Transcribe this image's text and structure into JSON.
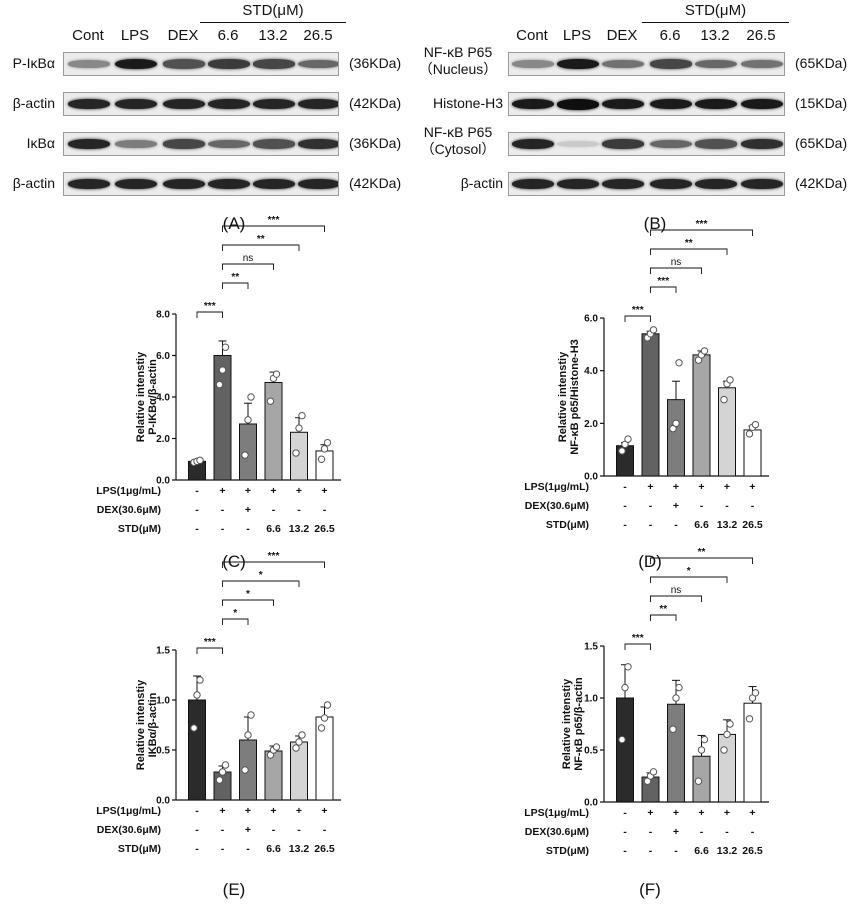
{
  "blots": [
    {
      "id": "A",
      "caption": "(A)",
      "header": {
        "labels": [
          "Cont",
          "LPS",
          "DEX"
        ],
        "std_label": "STD(μM)",
        "std_doses": [
          "6.6",
          "13.2",
          "26.5"
        ]
      },
      "rows": [
        {
          "name": "P-IκBα",
          "mw": "(36KDa)",
          "intensities": [
            0.45,
            0.95,
            0.7,
            0.8,
            0.75,
            0.6
          ]
        },
        {
          "name": "β-actin",
          "mw": "(42KDa)",
          "intensities": [
            0.9,
            0.9,
            0.9,
            0.9,
            0.9,
            0.9
          ]
        },
        {
          "name": "IκBα",
          "mw": "(36KDa)",
          "intensities": [
            0.9,
            0.5,
            0.75,
            0.6,
            0.7,
            0.85
          ]
        },
        {
          "name": "β-actin",
          "mw": "(42KDa)",
          "intensities": [
            0.9,
            0.9,
            0.9,
            0.9,
            0.9,
            0.9
          ]
        }
      ]
    },
    {
      "id": "B",
      "caption": "(B)",
      "header": {
        "labels": [
          "Cont",
          "LPS",
          "DEX"
        ],
        "std_label": "STD(μM)",
        "std_doses": [
          "6.6",
          "13.2",
          "26.5"
        ]
      },
      "rows": [
        {
          "name": "NF-κB P65",
          "name2": "（Nucleus）",
          "mw": "(65KDa)",
          "intensities": [
            0.45,
            0.95,
            0.55,
            0.75,
            0.6,
            0.55
          ]
        },
        {
          "name": "Histone-H3",
          "mw": "(15KDa)",
          "intensities": [
            0.95,
            1.0,
            0.95,
            0.95,
            0.95,
            0.95
          ]
        },
        {
          "name": "NF-κB P65",
          "name2": "（Cytosol）",
          "mw": "(65KDa)",
          "intensities": [
            0.9,
            0.15,
            0.8,
            0.6,
            0.7,
            0.85
          ]
        },
        {
          "name": "β-actin",
          "mw": "(42KDa)",
          "intensities": [
            0.9,
            0.9,
            0.9,
            0.9,
            0.9,
            0.9
          ]
        }
      ]
    }
  ],
  "chart_data": [
    {
      "id": "C",
      "type": "bar",
      "caption": "(C)",
      "ylabel": "Relative intenstiy",
      "ylabel2": "P-IKBα/β-actin",
      "ylim": [
        0,
        8
      ],
      "yticks": [
        "0.0",
        "2.0",
        "4.0",
        "6.0",
        "8.0"
      ],
      "values": [
        0.9,
        6.0,
        2.7,
        4.7,
        2.3,
        1.4
      ],
      "errors": [
        0.06,
        0.7,
        1.0,
        0.5,
        0.7,
        0.3
      ],
      "points": [
        [
          0.85,
          0.9,
          0.95
        ],
        [
          4.6,
          5.3,
          6.4
        ],
        [
          1.2,
          2.9,
          4.0
        ],
        [
          3.8,
          4.9,
          5.1
        ],
        [
          1.3,
          2.5,
          3.1
        ],
        [
          1.0,
          1.5,
          1.8
        ]
      ],
      "comparisons": [
        {
          "from": 0,
          "to": 1,
          "label": "***"
        },
        {
          "from": 1,
          "to": 2,
          "label": "**"
        },
        {
          "from": 1,
          "to": 3,
          "label": "ns"
        },
        {
          "from": 1,
          "to": 4,
          "label": "**"
        },
        {
          "from": 1,
          "to": 5,
          "label": "***"
        }
      ],
      "conditions": [
        {
          "label": "LPS(1μg/mL)",
          "values": [
            "-",
            "+",
            "+",
            "+",
            "+",
            "+"
          ]
        },
        {
          "label": "DEX(30.6μM)",
          "values": [
            "-",
            "-",
            "+",
            "-",
            "-",
            "-"
          ]
        },
        {
          "label": "STD(μM)",
          "values": [
            "-",
            "-",
            "-",
            "6.6",
            "13.2",
            "26.5"
          ]
        }
      ]
    },
    {
      "id": "D",
      "type": "bar",
      "caption": "(D)",
      "ylabel": "Relative intenstiy",
      "ylabel2": "NF-κB p65/Histone-H3",
      "ylim": [
        0,
        6
      ],
      "yticks": [
        "0.0",
        "2.0",
        "4.0",
        "6.0"
      ],
      "values": [
        1.15,
        5.4,
        2.9,
        4.6,
        3.35,
        1.75
      ],
      "errors": [
        0.12,
        0.1,
        0.7,
        0.15,
        0.25,
        0.15
      ],
      "points": [
        [
          0.95,
          1.2,
          1.4
        ],
        [
          5.25,
          5.4,
          5.55
        ],
        [
          1.8,
          2.0,
          4.3
        ],
        [
          4.4,
          4.6,
          4.75
        ],
        [
          2.9,
          3.5,
          3.65
        ],
        [
          1.6,
          1.85,
          1.95
        ]
      ],
      "comparisons": [
        {
          "from": 0,
          "to": 1,
          "label": "***"
        },
        {
          "from": 1,
          "to": 2,
          "label": "***"
        },
        {
          "from": 1,
          "to": 3,
          "label": "ns"
        },
        {
          "from": 1,
          "to": 4,
          "label": "**"
        },
        {
          "from": 1,
          "to": 5,
          "label": "***"
        }
      ],
      "conditions": [
        {
          "label": "LPS(1μg/mL)",
          "values": [
            "-",
            "+",
            "+",
            "+",
            "+",
            "+"
          ]
        },
        {
          "label": "DEX(30.6μM)",
          "values": [
            "-",
            "-",
            "+",
            "-",
            "-",
            "-"
          ]
        },
        {
          "label": "STD(μM)",
          "values": [
            "-",
            "-",
            "-",
            "6.6",
            "13.2",
            "26.5"
          ]
        }
      ]
    },
    {
      "id": "E",
      "type": "bar",
      "caption": "(E)",
      "ylabel": "Relative intenstiy",
      "ylabel2": "IKBα/β-actin",
      "ylim": [
        0,
        1.5
      ],
      "yticks": [
        "0.0",
        "0.5",
        "1.0",
        "1.5"
      ],
      "values": [
        1.0,
        0.28,
        0.6,
        0.49,
        0.58,
        0.83
      ],
      "errors": [
        0.24,
        0.06,
        0.23,
        0.05,
        0.06,
        0.1
      ],
      "points": [
        [
          0.72,
          1.05,
          1.2
        ],
        [
          0.2,
          0.28,
          0.35
        ],
        [
          0.3,
          0.65,
          0.85
        ],
        [
          0.45,
          0.5,
          0.53
        ],
        [
          0.52,
          0.58,
          0.65
        ],
        [
          0.72,
          0.82,
          0.95
        ]
      ],
      "comparisons": [
        {
          "from": 0,
          "to": 1,
          "label": "***"
        },
        {
          "from": 1,
          "to": 2,
          "label": "*"
        },
        {
          "from": 1,
          "to": 3,
          "label": "*"
        },
        {
          "from": 1,
          "to": 4,
          "label": "*"
        },
        {
          "from": 1,
          "to": 5,
          "label": "***"
        }
      ],
      "conditions": [
        {
          "label": "LPS(1μg/mL)",
          "values": [
            "-",
            "+",
            "+",
            "+",
            "+",
            "+"
          ]
        },
        {
          "label": "DEX(30.6μM)",
          "values": [
            "-",
            "-",
            "+",
            "-",
            "-",
            "-"
          ]
        },
        {
          "label": "STD(μM)",
          "values": [
            "-",
            "-",
            "-",
            "6.6",
            "13.2",
            "26.5"
          ]
        }
      ]
    },
    {
      "id": "F",
      "type": "bar",
      "caption": "(F)",
      "ylabel": "Relative intenstiy",
      "ylabel2": "NF-κB p65/β-actin",
      "ylim": [
        0,
        1.5
      ],
      "yticks": [
        "0.0",
        "0.5",
        "1.0",
        "1.5"
      ],
      "values": [
        1.0,
        0.24,
        0.94,
        0.44,
        0.65,
        0.95
      ],
      "errors": [
        0.32,
        0.04,
        0.23,
        0.2,
        0.14,
        0.16
      ],
      "points": [
        [
          0.6,
          1.1,
          1.3
        ],
        [
          0.2,
          0.25,
          0.29
        ],
        [
          0.7,
          1.0,
          1.1
        ],
        [
          0.2,
          0.5,
          0.6
        ],
        [
          0.5,
          0.65,
          0.75
        ],
        [
          0.8,
          1.0,
          1.05
        ]
      ],
      "comparisons": [
        {
          "from": 0,
          "to": 1,
          "label": "***"
        },
        {
          "from": 1,
          "to": 2,
          "label": "**"
        },
        {
          "from": 1,
          "to": 3,
          "label": "ns"
        },
        {
          "from": 1,
          "to": 4,
          "label": "*"
        },
        {
          "from": 1,
          "to": 5,
          "label": "**"
        }
      ],
      "conditions": [
        {
          "label": "LPS(1μg/mL)",
          "values": [
            "-",
            "+",
            "+",
            "+",
            "+",
            "+"
          ]
        },
        {
          "label": "DEX(30.6μM)",
          "values": [
            "-",
            "-",
            "+",
            "-",
            "-",
            "-"
          ]
        },
        {
          "label": "STD(μM)",
          "values": [
            "-",
            "-",
            "-",
            "6.6",
            "13.2",
            "26.5"
          ]
        }
      ]
    }
  ],
  "colors": {
    "bars": [
      "#2b2b2b",
      "#626262",
      "#7d7d7d",
      "#a6a6a6",
      "#d4d4d4",
      "#ffffff"
    ],
    "stroke": "#111111"
  }
}
